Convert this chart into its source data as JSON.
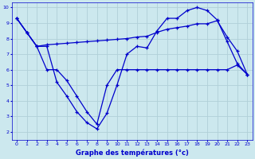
{
  "line1_x": [
    0,
    1,
    2,
    3,
    4,
    5,
    6,
    7,
    8,
    9,
    10,
    11,
    12,
    13,
    14,
    15,
    16,
    17,
    18,
    19,
    20,
    21,
    22,
    23
  ],
  "line1_y": [
    9.3,
    8.4,
    7.5,
    7.5,
    5.2,
    4.3,
    3.3,
    2.6,
    2.2,
    3.2,
    5.0,
    7.0,
    7.5,
    7.4,
    8.5,
    9.3,
    9.3,
    9.8,
    10.0,
    9.8,
    9.2,
    7.8,
    6.4,
    5.7
  ],
  "line2_x": [
    0,
    1,
    2,
    3,
    4,
    5,
    6,
    7,
    8,
    9,
    10,
    11,
    12,
    13,
    14,
    15,
    16,
    17,
    18,
    19,
    20,
    21,
    22,
    23
  ],
  "line2_y": [
    9.3,
    8.4,
    7.5,
    7.6,
    7.65,
    7.7,
    7.75,
    7.8,
    7.85,
    7.9,
    7.95,
    8.0,
    8.1,
    8.15,
    8.4,
    8.6,
    8.7,
    8.8,
    8.95,
    8.95,
    9.15,
    8.1,
    7.2,
    5.7
  ],
  "line3_x": [
    0,
    1,
    2,
    3,
    4,
    5,
    6,
    7,
    8,
    9,
    10,
    11,
    12,
    13,
    14,
    15,
    16,
    17,
    18,
    19,
    20,
    21,
    22,
    23
  ],
  "line3_y": [
    9.3,
    8.4,
    7.5,
    6.0,
    6.0,
    5.3,
    4.3,
    3.3,
    2.5,
    5.0,
    6.0,
    6.0,
    6.0,
    6.0,
    6.0,
    6.0,
    6.0,
    6.0,
    6.0,
    6.0,
    6.0,
    6.0,
    6.3,
    5.7
  ],
  "line_color": "#0000cc",
  "bg_color": "#cce8ee",
  "grid_color": "#b0d0d8",
  "xlabel": "Graphe des températures (°c)",
  "xlim": [
    -0.5,
    23.5
  ],
  "ylim": [
    1.5,
    10.3
  ],
  "yticks": [
    2,
    3,
    4,
    5,
    6,
    7,
    8,
    9,
    10
  ],
  "xticks": [
    0,
    1,
    2,
    3,
    4,
    5,
    6,
    7,
    8,
    9,
    10,
    11,
    12,
    13,
    14,
    15,
    16,
    17,
    18,
    19,
    20,
    21,
    22,
    23
  ]
}
